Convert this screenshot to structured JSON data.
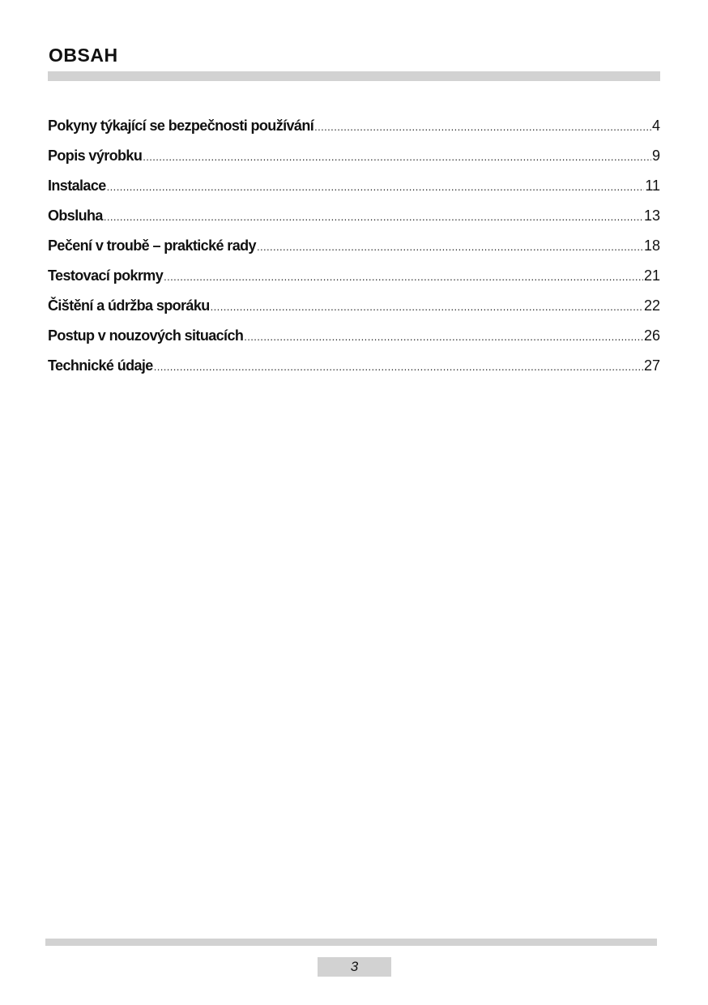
{
  "header": {
    "title": "OBSAH"
  },
  "toc": [
    {
      "label": "Pokyny týkající se bezpečnosti používání",
      "page": "4"
    },
    {
      "label": "Popis výrobku",
      "page": "9"
    },
    {
      "label": "Instalace",
      "page": "11"
    },
    {
      "label": "Obsluha",
      "page": "13"
    },
    {
      "label": "Pečení v troubě – praktické rady",
      "page": "18"
    },
    {
      "label": "Testovací pokrmy",
      "page": "21"
    },
    {
      "label": "Čištění a údržba sporáku",
      "page": "22"
    },
    {
      "label": "Postup v nouzových situacích",
      "page": "26"
    },
    {
      "label": "Technické údaje",
      "page": "27"
    }
  ],
  "footer": {
    "page_number": "3"
  },
  "colors": {
    "bar": "#d2d2d2",
    "text": "#111111"
  }
}
